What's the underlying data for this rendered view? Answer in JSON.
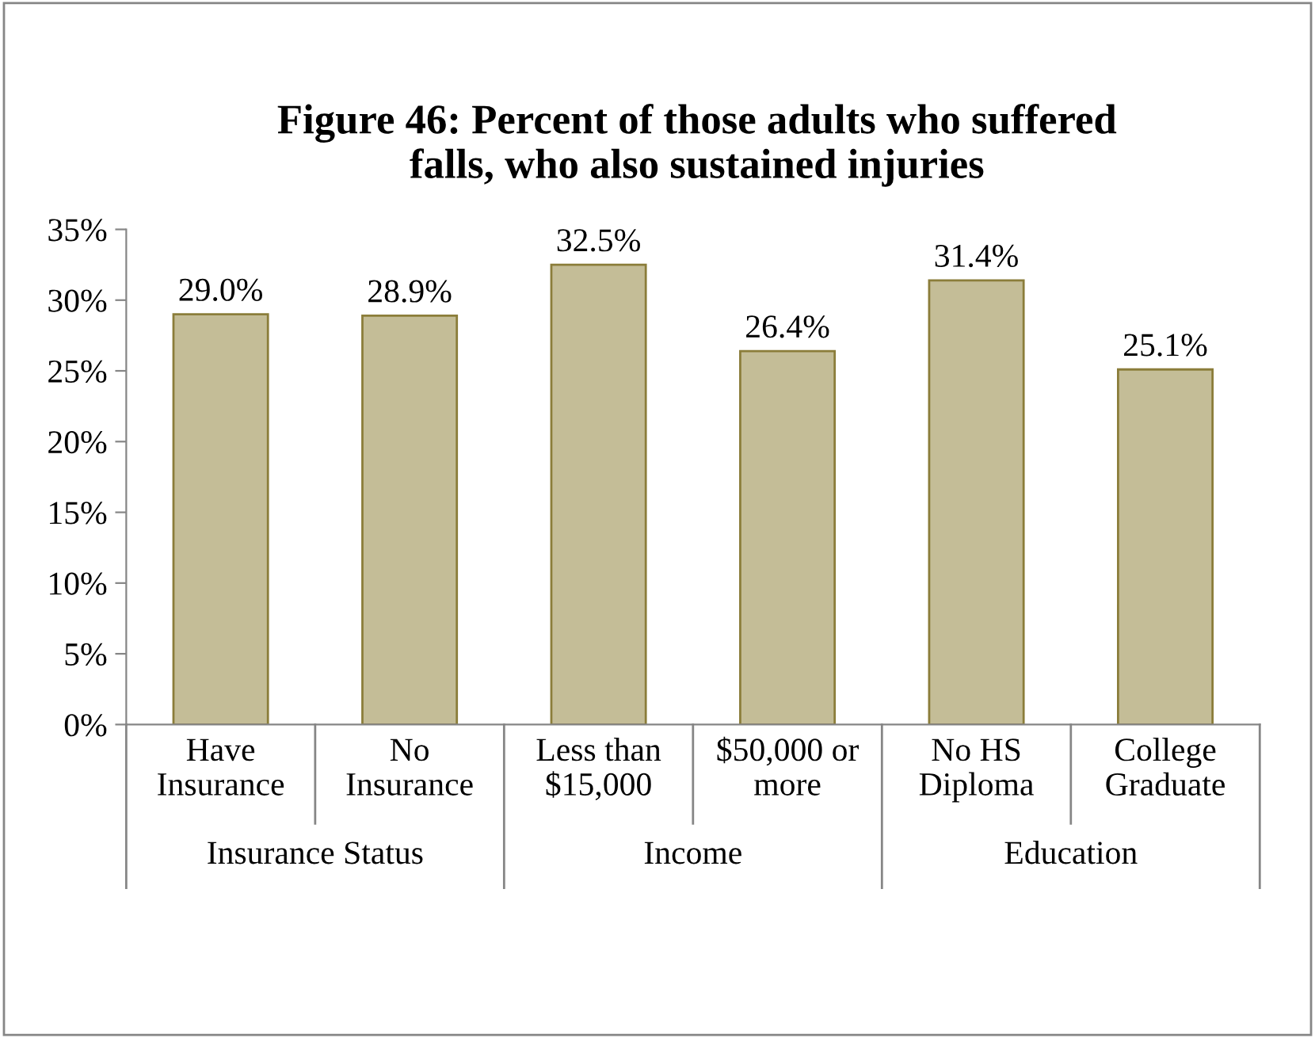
{
  "chart_data": {
    "type": "bar",
    "title": "Figure 46: Percent of those adults who suffered\nfalls, who also sustained injuries",
    "categories": [
      "Have\nInsurance",
      "No\nInsurance",
      "Less than\n$15,000",
      "$50,000 or\nmore",
      "No HS\nDiploma",
      "College\nGraduate"
    ],
    "values": [
      29.0,
      28.9,
      32.5,
      26.4,
      31.4,
      25.1
    ],
    "value_labels": [
      "29.0%",
      "28.9%",
      "32.5%",
      "26.4%",
      "31.4%",
      "25.1%"
    ],
    "color": "#c4bd97",
    "annotations": [
      "Insurance Status",
      "Income",
      "Education"
    ],
    "ylim": [
      0,
      35
    ],
    "yticks": [
      {
        "value": 0,
        "label": "0%"
      },
      {
        "value": 5,
        "label": "5%"
      },
      {
        "value": 10,
        "label": "10%"
      },
      {
        "value": 15,
        "label": "15%"
      },
      {
        "value": 20,
        "label": "20%"
      },
      {
        "value": 25,
        "label": "25%"
      },
      {
        "value": 30,
        "label": "30%"
      },
      {
        "value": 35,
        "label": "35%"
      }
    ],
    "grid": false,
    "legend": false
  }
}
